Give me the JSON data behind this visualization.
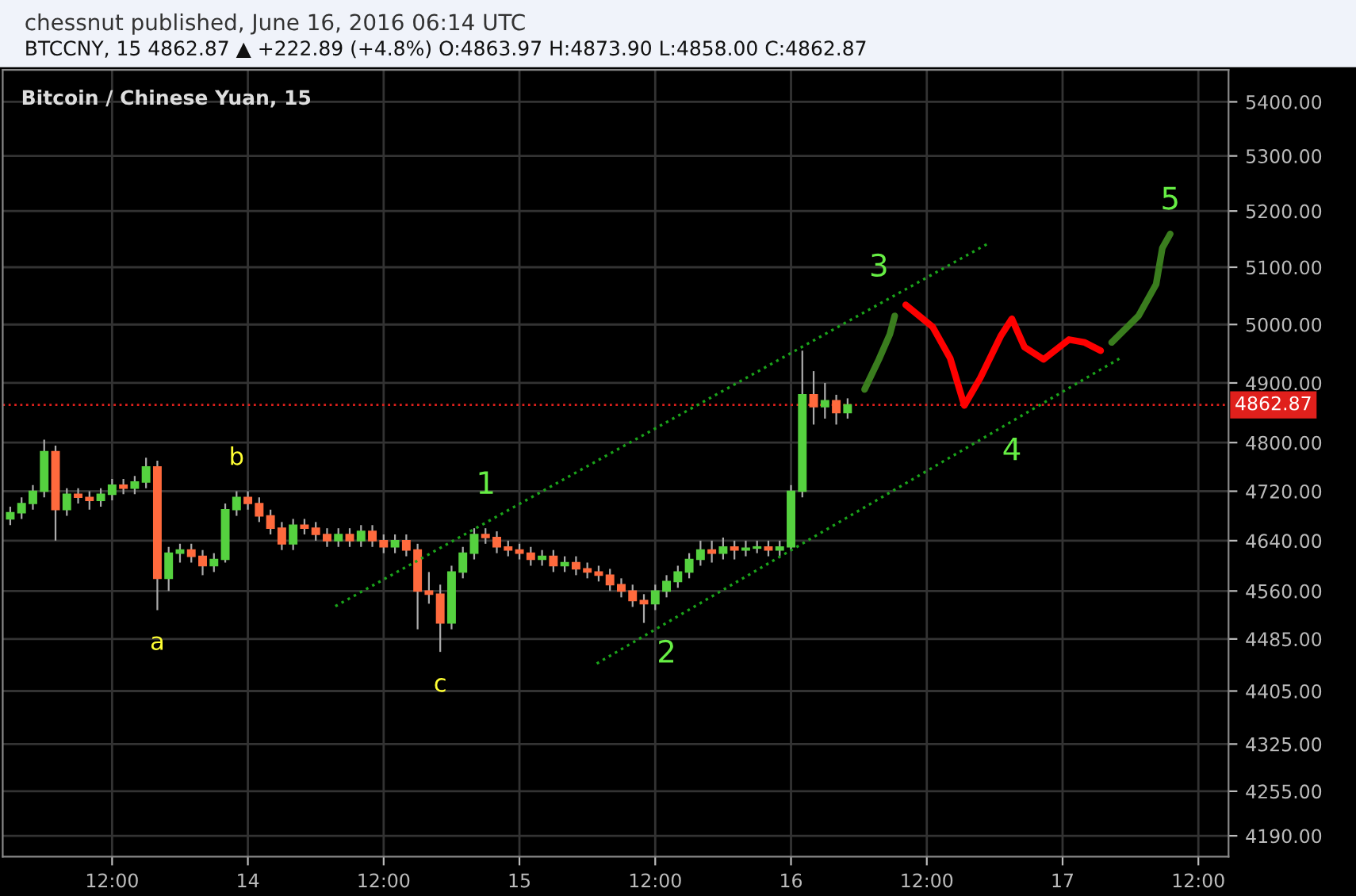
{
  "chart_data": {
    "type": "candlestick",
    "title": "chessnut published, June 16, 2016 06:14 UTC",
    "subtitle": "BTCCNY, 15 4862.87 ▲ +222.89 (+4.8%) O:4863.97 H:4873.90 L:4858.00 C:4862.87",
    "annotations": [
      "Bitcoin / Chinese Yuan, 15",
      {
        "text": "a",
        "x": "2016-06-13T16:00",
        "y": 4530
      },
      {
        "text": "b",
        "x": "2016-06-13T23:00",
        "y": 4720
      },
      {
        "text": "c",
        "x": "2016-06-14T17:00",
        "y": 4465
      },
      {
        "text": "1",
        "x": "2016-06-14T21:02",
        "y": 4676
      },
      {
        "text": "2",
        "x": "2016-06-15T13:00",
        "y": 4513
      },
      {
        "text": "3",
        "x": "2016-06-16T07:46",
        "y": 5041
      },
      {
        "text": "4",
        "x": "2016-06-16T19:31",
        "y": 4840
      },
      {
        "text": "5",
        "x": "2016-06-17T09:31",
        "y": 5159
      }
    ],
    "series": [
      {
        "x": [
          "2016-06-13T03:00",
          "2016-06-13T04:00",
          "2016-06-13T05:00",
          "2016-06-13T06:00",
          "2016-06-13T07:00",
          "2016-06-13T08:00",
          "2016-06-13T09:00",
          "2016-06-13T10:00",
          "2016-06-13T11:00",
          "2016-06-13T12:00",
          "2016-06-13T13:00",
          "2016-06-13T14:00",
          "2016-06-13T15:00",
          "2016-06-13T16:00",
          "2016-06-13T17:00",
          "2016-06-13T18:00",
          "2016-06-13T19:00",
          "2016-06-13T20:00",
          "2016-06-13T21:00",
          "2016-06-13T22:00",
          "2016-06-13T23:00",
          "2016-06-14T00:00",
          "2016-06-14T01:00",
          "2016-06-14T02:00",
          "2016-06-14T03:00",
          "2016-06-14T04:00",
          "2016-06-14T05:00",
          "2016-06-14T06:00",
          "2016-06-14T07:00",
          "2016-06-14T08:00",
          "2016-06-14T09:00",
          "2016-06-14T10:00",
          "2016-06-14T11:00",
          "2016-06-14T12:00",
          "2016-06-14T13:00",
          "2016-06-14T14:00",
          "2016-06-14T15:00",
          "2016-06-14T16:00",
          "2016-06-14T17:00",
          "2016-06-14T18:00",
          "2016-06-14T19:00",
          "2016-06-14T20:00",
          "2016-06-14T21:00",
          "2016-06-14T22:00",
          "2016-06-14T23:00",
          "2016-06-15T00:00",
          "2016-06-15T01:00",
          "2016-06-15T02:00",
          "2016-06-15T03:00",
          "2016-06-15T04:00",
          "2016-06-15T05:00",
          "2016-06-15T06:00",
          "2016-06-15T07:00",
          "2016-06-15T08:00",
          "2016-06-15T09:00",
          "2016-06-15T10:00",
          "2016-06-15T11:00",
          "2016-06-15T12:00",
          "2016-06-15T13:00",
          "2016-06-15T14:00",
          "2016-06-15T15:00",
          "2016-06-15T16:00",
          "2016-06-15T17:00",
          "2016-06-15T18:00",
          "2016-06-15T19:00",
          "2016-06-15T20:00",
          "2016-06-15T21:00",
          "2016-06-15T22:00",
          "2016-06-15T23:00",
          "2016-06-16T00:00",
          "2016-06-16T01:00",
          "2016-06-16T02:00",
          "2016-06-16T03:00",
          "2016-06-16T04:00",
          "2016-06-16T05:00"
        ],
        "ohlc": [
          [
            4675,
            4695,
            4665,
            4685
          ],
          [
            4685,
            4710,
            4675,
            4700
          ],
          [
            4700,
            4730,
            4690,
            4720
          ],
          [
            4720,
            4805,
            4710,
            4785
          ],
          [
            4785,
            4795,
            4640,
            4690
          ],
          [
            4690,
            4725,
            4680,
            4715
          ],
          [
            4715,
            4725,
            4700,
            4710
          ],
          [
            4710,
            4720,
            4690,
            4705
          ],
          [
            4705,
            4725,
            4695,
            4715
          ],
          [
            4715,
            4740,
            4705,
            4730
          ],
          [
            4730,
            4740,
            4715,
            4725
          ],
          [
            4725,
            4745,
            4715,
            4735
          ],
          [
            4735,
            4775,
            4725,
            4760
          ],
          [
            4760,
            4770,
            4530,
            4580
          ],
          [
            4580,
            4630,
            4560,
            4620
          ],
          [
            4620,
            4635,
            4605,
            4625
          ],
          [
            4625,
            4635,
            4605,
            4615
          ],
          [
            4615,
            4625,
            4585,
            4600
          ],
          [
            4600,
            4620,
            4590,
            4610
          ],
          [
            4610,
            4700,
            4605,
            4690
          ],
          [
            4690,
            4720,
            4680,
            4710
          ],
          [
            4710,
            4720,
            4690,
            4700
          ],
          [
            4700,
            4710,
            4670,
            4680
          ],
          [
            4680,
            4690,
            4650,
            4660
          ],
          [
            4660,
            4670,
            4625,
            4635
          ],
          [
            4635,
            4675,
            4625,
            4665
          ],
          [
            4665,
            4675,
            4650,
            4660
          ],
          [
            4660,
            4670,
            4640,
            4650
          ],
          [
            4650,
            4660,
            4630,
            4640
          ],
          [
            4640,
            4660,
            4630,
            4650
          ],
          [
            4650,
            4660,
            4630,
            4640
          ],
          [
            4640,
            4665,
            4630,
            4655
          ],
          [
            4655,
            4665,
            4630,
            4640
          ],
          [
            4640,
            4650,
            4620,
            4630
          ],
          [
            4630,
            4650,
            4620,
            4640
          ],
          [
            4640,
            4650,
            4615,
            4625
          ],
          [
            4625,
            4635,
            4500,
            4560
          ],
          [
            4560,
            4590,
            4540,
            4555
          ],
          [
            4555,
            4570,
            4465,
            4510
          ],
          [
            4510,
            4600,
            4500,
            4590
          ],
          [
            4590,
            4630,
            4580,
            4620
          ],
          [
            4620,
            4660,
            4610,
            4650
          ],
          [
            4650,
            4660,
            4635,
            4645
          ],
          [
            4645,
            4655,
            4620,
            4630
          ],
          [
            4630,
            4640,
            4615,
            4625
          ],
          [
            4625,
            4635,
            4610,
            4620
          ],
          [
            4620,
            4630,
            4600,
            4610
          ],
          [
            4610,
            4625,
            4600,
            4615
          ],
          [
            4615,
            4625,
            4590,
            4600
          ],
          [
            4600,
            4615,
            4590,
            4605
          ],
          [
            4605,
            4615,
            4585,
            4595
          ],
          [
            4595,
            4605,
            4580,
            4590
          ],
          [
            4590,
            4600,
            4575,
            4585
          ],
          [
            4585,
            4595,
            4560,
            4570
          ],
          [
            4570,
            4580,
            4550,
            4560
          ],
          [
            4560,
            4570,
            4535,
            4545
          ],
          [
            4545,
            4555,
            4510,
            4540
          ],
          [
            4540,
            4570,
            4530,
            4560
          ],
          [
            4560,
            4585,
            4550,
            4575
          ],
          [
            4575,
            4600,
            4565,
            4590
          ],
          [
            4590,
            4620,
            4580,
            4610
          ],
          [
            4610,
            4640,
            4600,
            4625
          ],
          [
            4625,
            4640,
            4605,
            4620
          ],
          [
            4620,
            4645,
            4610,
            4630
          ],
          [
            4630,
            4640,
            4610,
            4625
          ],
          [
            4625,
            4640,
            4615,
            4628
          ],
          [
            4628,
            4640,
            4620,
            4630
          ],
          [
            4630,
            4640,
            4615,
            4625
          ],
          [
            4625,
            4640,
            4615,
            4630
          ],
          [
            4630,
            4730,
            4625,
            4720
          ],
          [
            4720,
            4955,
            4710,
            4880
          ],
          [
            4880,
            4920,
            4830,
            4860
          ],
          [
            4860,
            4900,
            4840,
            4870
          ],
          [
            4870,
            4880,
            4830,
            4850
          ],
          [
            4850,
            4874,
            4840,
            4862.87
          ]
        ]
      },
      {
        "type": "line",
        "color": "#1aa31a",
        "line_style": "dotted",
        "x": [
          "2016-06-14T07:44",
          "2016-06-16T17:36"
        ],
        "values": [
          4536,
          5144
        ]
      },
      {
        "type": "line",
        "color": "#1aa31a",
        "line_style": "dotted",
        "x": [
          "2016-06-15T06:50",
          "2016-06-17T05:10"
        ],
        "values": [
          4447,
          4943
        ]
      },
      {
        "type": "line",
        "color": "#3a7d1e",
        "line_style": "solid",
        "x": [
          "2016-06-16T06:30",
          "2016-06-16T07:46",
          "2016-06-16T08:44",
          "2016-06-16T09:10"
        ],
        "values": [
          4889,
          4940,
          4983,
          5015
        ]
      },
      {
        "type": "line",
        "color": "#ff0000",
        "line_style": "solid",
        "x": [
          "2016-06-16T10:08",
          "2016-06-16T12:31",
          "2016-06-16T14:04",
          "2016-06-16T15:19",
          "2016-06-16T16:43",
          "2016-06-16T18:32",
          "2016-06-16T19:31",
          "2016-06-16T20:38",
          "2016-06-16T22:19",
          "2016-06-17T00:34",
          "2016-06-17T01:58",
          "2016-06-17T03:22"
        ],
        "values": [
          5034,
          4996,
          4942,
          4862,
          4908,
          4980,
          5010,
          4961,
          4940,
          4974,
          4969,
          4955
        ]
      },
      {
        "type": "line",
        "color": "#3a7d1e",
        "line_style": "solid",
        "x": [
          "2016-06-17T04:20",
          "2016-06-17T06:43",
          "2016-06-17T08:16",
          "2016-06-17T08:49",
          "2016-06-17T09:31"
        ],
        "values": [
          4969,
          5015,
          5070,
          5134,
          5159
        ]
      }
    ],
    "ref_lines": [
      {
        "axis": "y",
        "value": 4862.87,
        "label": "4862.87",
        "color": "#e0201c",
        "line_style": "dotted"
      }
    ],
    "log": true,
    "xlim": [
      "2016-06-13T02:20",
      "2016-06-17T14:40"
    ],
    "xticks": [
      {
        "value": "2016-06-13T12:00",
        "label": "12:00"
      },
      {
        "value": "2016-06-14",
        "label": "14"
      },
      {
        "value": "2016-06-14T12:00",
        "label": "12:00"
      },
      {
        "value": "2016-06-15",
        "label": "15"
      },
      {
        "value": "2016-06-15T12:00",
        "label": "12:00"
      },
      {
        "value": "2016-06-16",
        "label": "16"
      },
      {
        "value": "2016-06-16T12:00",
        "label": "12:00"
      },
      {
        "value": "2016-06-17",
        "label": "17"
      },
      {
        "value": "2016-06-17T12:00",
        "label": "12:00"
      }
    ],
    "ylim": [
      4160,
      5460
    ],
    "yticks": [
      {
        "value": 4190,
        "label": "4190.00"
      },
      {
        "value": 4255,
        "label": "4255.00"
      },
      {
        "value": 4325,
        "label": "4325.00"
      },
      {
        "value": 4405,
        "label": "4405.00"
      },
      {
        "value": 4485,
        "label": "4485.00"
      },
      {
        "value": 4560,
        "label": "4560.00"
      },
      {
        "value": 4640,
        "label": "4640.00"
      },
      {
        "value": 4720,
        "label": "4720.00"
      },
      {
        "value": 4800,
        "label": "4800.00"
      },
      {
        "value": 4900,
        "label": "4900.00"
      },
      {
        "value": 5000,
        "label": "5000.00"
      },
      {
        "value": 5100,
        "label": "5100.00"
      },
      {
        "value": 5200,
        "label": "5200.00"
      },
      {
        "value": 5300,
        "label": "5300.00"
      },
      {
        "value": 5400,
        "label": "5400.00"
      }
    ],
    "grid": true
  }
}
